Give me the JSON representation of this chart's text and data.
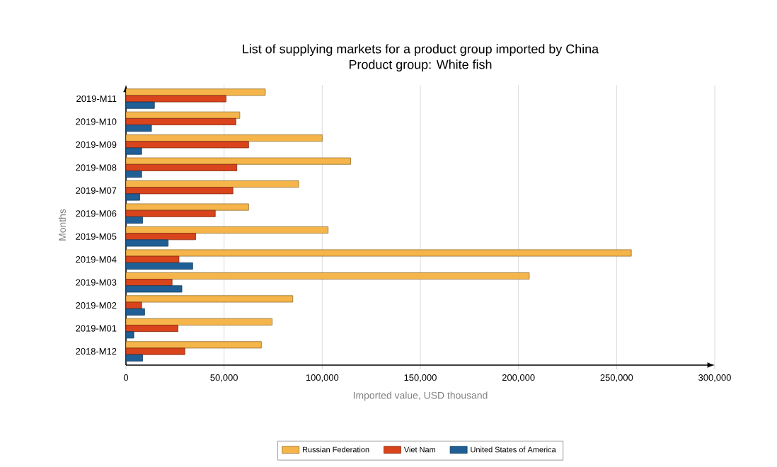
{
  "chart_data": {
    "type": "bar",
    "orientation": "horizontal",
    "title": "List of supplying markets for a product group imported by China",
    "subtitle": "Product group: White fish",
    "xlabel": "Imported value, USD thousand",
    "ylabel": "Months",
    "categories": [
      "2019-M11",
      "2019-M10",
      "2019-M09",
      "2019-M08",
      "2019-M07",
      "2019-M06",
      "2019-M05",
      "2019-M04",
      "2019-M03",
      "2019-M02",
      "2019-M01",
      "2018-M12"
    ],
    "series": [
      {
        "name": "Russian Federation",
        "color": "#f5b54a",
        "values": [
          71000,
          58000,
          100000,
          114500,
          88000,
          62500,
          103000,
          257500,
          205500,
          85000,
          74500,
          69000
        ]
      },
      {
        "name": "Viet Nam",
        "color": "#d9441c",
        "values": [
          51000,
          56000,
          62500,
          56500,
          54500,
          45500,
          35500,
          27000,
          23500,
          8000,
          26500,
          30000
        ]
      },
      {
        "name": "United States of America",
        "color": "#1f5f96",
        "values": [
          14500,
          13000,
          8000,
          8000,
          7000,
          8500,
          21500,
          34000,
          28500,
          9500,
          4000,
          8500
        ]
      }
    ],
    "xlim": [
      0,
      300000
    ],
    "xticks": [
      0,
      {
        "value": 50000,
        "label": "50,000"
      },
      {
        "value": 100000,
        "label": "100,000"
      },
      {
        "value": 150000,
        "label": "150,000"
      },
      {
        "value": 200000,
        "label": "200,000"
      },
      {
        "value": 250000,
        "label": "250,000"
      },
      {
        "value": 300000,
        "label": "300,000"
      }
    ],
    "grid": "x",
    "legend": "bottom"
  }
}
